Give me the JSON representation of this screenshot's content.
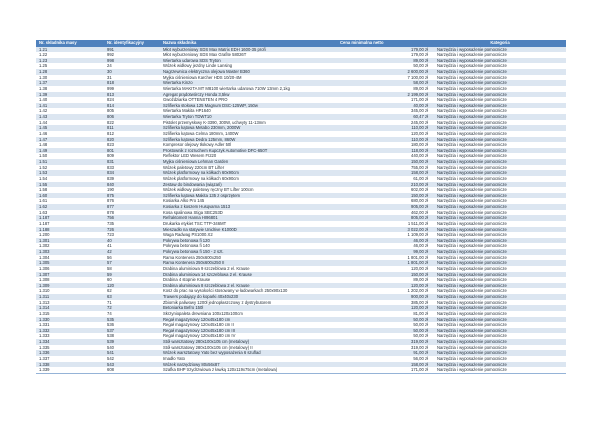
{
  "table": {
    "colors": {
      "header_bg": "#4f81bd",
      "header_text": "#ffffff",
      "band_row_bg": "#dce6f1",
      "plain_row_bg": "#ffffff"
    },
    "columns": [
      {
        "key": "nr",
        "label": "Nr. składnika masy"
      },
      {
        "key": "id",
        "label": "Nr. identyfikacyjny"
      },
      {
        "key": "name",
        "label": "Nazwa składnika"
      },
      {
        "key": "price",
        "label": "Cena minimalna netto"
      },
      {
        "key": "category",
        "label": "Kategoria"
      }
    ],
    "rows": [
      {
        "nr": "1.21",
        "id": "991",
        "name": "Młot wyburzeniowy SDS Max Matrix EDH 1600-35 profi",
        "price": "179,00 zł",
        "category": "Narzędzia i wyposażenie pomocnicze"
      },
      {
        "nr": "1.22",
        "id": "992",
        "name": "Młot wyburzeniowy SDS Max Grafite 58026T",
        "price": "179,00 zł",
        "category": "Narzędzia i wyposażenie pomocnicze"
      },
      {
        "nr": "1.23",
        "id": "998",
        "name": "Wiertarka udarowa SDS Tryton",
        "price": "89,00 zł",
        "category": "Narzędzia i wyposażenie pomocnicze"
      },
      {
        "nr": "1.25",
        "id": "24",
        "name": "Wózek widłowy jezdny Linde Lansing",
        "price": "50,00 zł",
        "category": "Narzędzia i wyposażenie pomocnicze"
      },
      {
        "nr": "1.28",
        "id": "30",
        "name": "Nagrzewnica elektryczna olejowa Master B360",
        "price": "2 600,00 zł",
        "category": "Narzędzia i wyposażenie pomocnicze"
      },
      {
        "nr": "1.30",
        "id": "31",
        "name": "Myjka ciśnieniowa Karcher HDS 10/20-4M",
        "price": "7 100,00 zł",
        "category": "Narzędzia i wyposażenie pomocnicze"
      },
      {
        "nr": "1.37",
        "id": "818",
        "name": "Wiertarka Kinzo",
        "price": "58,00 zł",
        "category": "Narzędzia i wyposażenie pomocnicze"
      },
      {
        "nr": "1.38",
        "id": "999",
        "name": "Wiertarka MAKITA MT M8100 wiertarka udarowa 710W 13mm 2,1kg",
        "price": "89,00 zł",
        "category": "Narzędzia i wyposażenie pomocnicze"
      },
      {
        "nr": "1.39",
        "id": "813",
        "name": "Agregat prądotwórczy Honda 3,5kw",
        "price": "2 199,00 zł",
        "category": "Narzędzia i wyposażenie pomocnicze"
      },
      {
        "nr": "1.40",
        "id": "824",
        "name": "Gwoździarka OTTENSTEN 4 PRO",
        "price": "171,00 zł",
        "category": "Narzędzia i wyposażenie pomocnicze"
      },
      {
        "nr": "1.41",
        "id": "814",
        "name": "Szlifierka stołowa 125 Magnum DSC-125WP, 150w",
        "price": "40,00 zł",
        "category": "Narzędzia i wyposażenie pomocnicze"
      },
      {
        "nr": "1.42",
        "id": "805",
        "name": "Wiertarka Makita HP1640",
        "price": "345,00 zł",
        "category": "Narzędzia i wyposażenie pomocnicze"
      },
      {
        "nr": "1.43",
        "id": "806",
        "name": "Wiertarka Tryton TDWT10",
        "price": "60,47 zł",
        "category": "Narzędzia i wyposażenie pomocnicze"
      },
      {
        "nr": "1.44",
        "id": "822",
        "name": "Pistolet przemysłowy K-3390, 300W, uchwyty 11-13mm",
        "price": "245,00 zł",
        "category": "Narzędzia i wyposażenie pomocnicze"
      },
      {
        "nr": "1.45",
        "id": "811",
        "name": "Szlifierka kątowa Metabo 230mm, 2000W",
        "price": "110,00 zł",
        "category": "Narzędzia i wyposażenie pomocnicze"
      },
      {
        "nr": "1.46",
        "id": "812",
        "name": "Szlifierka kątowa Celma 180mm, 1400W",
        "price": "120,00 zł",
        "category": "Narzędzia i wyposażenie pomocnicze"
      },
      {
        "nr": "1.47",
        "id": "820",
        "name": "Szlifierka kątowa Dedra 125mm, 860W",
        "price": "110,00 zł",
        "category": "Narzędzia i wyposażenie pomocnicze"
      },
      {
        "nr": "1.48",
        "id": "823",
        "name": "Kompresor olejowy tłokowy Adler 50l",
        "price": "180,00 zł",
        "category": "Narzędzia i wyposażenie pomocnicze"
      },
      {
        "nr": "1.49",
        "id": "801",
        "name": "Prostownik z rozruchem Kupczyk Automotive DFC-650T",
        "price": "118,00 zł",
        "category": "Narzędzia i wyposażenie pomocnicze"
      },
      {
        "nr": "1.50",
        "id": "809",
        "name": "Reflektor LED Wesem FI220",
        "price": "440,00 zł",
        "category": "Narzędzia i wyposażenie pomocnicze"
      },
      {
        "nr": "1.51",
        "id": "831",
        "name": "Myjka ciśnieniowa Lehman Garden",
        "price": "150,00 zł",
        "category": "Narzędzia i wyposażenie pomocnicze"
      },
      {
        "nr": "1.52",
        "id": "833",
        "name": "Wózek paletowy 220cm BT Lifter",
        "price": "755,00 zł",
        "category": "Narzędzia i wyposażenie pomocnicze"
      },
      {
        "nr": "1.53",
        "id": "834",
        "name": "Wózek platformowy na kółkach 60x90cm",
        "price": "158,00 zł",
        "category": "Narzędzia i wyposażenie pomocnicze"
      },
      {
        "nr": "1.54",
        "id": "839",
        "name": "Wózek platformowy na kółkach 60x90cm",
        "price": "61,00 zł",
        "category": "Narzędzia i wyposażenie pomocnicze"
      },
      {
        "nr": "1.55",
        "id": "840",
        "name": "Zestaw do bindowania (wiązań)",
        "price": "210,00 zł",
        "category": "Narzędzia i wyposażenie pomocnicze"
      },
      {
        "nr": "1.58",
        "id": "190",
        "name": "Wózek widłowy paletowy ręczny BT Lifter 100cm",
        "price": "602,00 zł",
        "category": "Narzędzia i wyposażenie pomocnicze"
      },
      {
        "nr": "1.60",
        "id": "875",
        "name": "Szlifierka kątowa Makita 135 z osprzętem",
        "price": "150,00 zł",
        "category": "Narzędzia i wyposażenie pomocnicze"
      },
      {
        "nr": "1.61",
        "id": "876",
        "name": "Kosiarka Alko Pro 145",
        "price": "680,00 zł",
        "category": "Narzędzia i wyposażenie pomocnicze"
      },
      {
        "nr": "1.62",
        "id": "877",
        "name": "Kosiarka z koszem Husqvarna 1513",
        "price": "905,00 zł",
        "category": "Narzędzia i wyposażenie pomocnicze"
      },
      {
        "nr": "1.63",
        "id": "878",
        "name": "Kosa spalinowa Stiga SBC253D",
        "price": "462,00 zł",
        "category": "Narzędzia i wyposażenie pomocnicze"
      },
      {
        "nr": "1.187",
        "id": "756",
        "name": "Refraktometr Hanna HI96801",
        "price": "805,00 zł",
        "category": "Narzędzia i wyposażenie pomocnicze"
      },
      {
        "nr": "1.187",
        "id": "735",
        "name": "Drukarka etykiet TSC TTP-346MT",
        "price": "1 511,00 zł",
        "category": "Narzędzia i wyposażenie pomocnicze"
      },
      {
        "nr": "1.188",
        "id": "726",
        "name": "Mieszadło na statywie Unidrive K1000D",
        "price": "3 022,00 zł",
        "category": "Narzędzia i wyposażenie pomocnicze"
      },
      {
        "nr": "1.200",
        "id": "723",
        "name": "Waga Radwag PS1000.X2",
        "price": "1 109,00 zł",
        "category": "Narzędzia i wyposażenie pomocnicze"
      },
      {
        "nr": "1.301",
        "id": "40",
        "name": "Pokrywa betonowa fi 120",
        "price": "46,00 zł",
        "category": "Narzędzia i wyposażenie pomocnicze"
      },
      {
        "nr": "1.302",
        "id": "41",
        "name": "Pokrywa betonowa fi 140",
        "price": "46,00 zł",
        "category": "Narzędzia i wyposażenie pomocnicze"
      },
      {
        "nr": "1.303",
        "id": "42",
        "name": "Pokrywa betonowa fi 150 - 2 szt.",
        "price": "99,00 zł",
        "category": "Narzędzia i wyposażenie pomocnicze"
      },
      {
        "nr": "1.304",
        "id": "56",
        "name": "Rama Kontenera 250x600x250",
        "price": "1 801,00 zł",
        "category": "Narzędzia i wyposażenie pomocnicze"
      },
      {
        "nr": "1.305",
        "id": "57",
        "name": "Rama Kontenera 250x600x250 II",
        "price": "1 801,00 zł",
        "category": "Narzędzia i wyposażenie pomocnicze"
      },
      {
        "nr": "1.306",
        "id": "58",
        "name": "Drabina aluminiowa 9 szczeblowa 2 el. Krause",
        "price": "120,00 zł",
        "category": "Narzędzia i wyposażenie pomocnicze"
      },
      {
        "nr": "1.307",
        "id": "59",
        "name": "Drabina aluminiowa 14 szczeblowa 2 el. Krause",
        "price": "150,00 zł",
        "category": "Narzędzia i wyposażenie pomocnicze"
      },
      {
        "nr": "1.308",
        "id": "60",
        "name": "Drabina 4 stopnie Krause",
        "price": "89,00 zł",
        "category": "Narzędzia i wyposażenie pomocnicze"
      },
      {
        "nr": "1.309",
        "id": "120",
        "name": "Drabina aluminiowa 8 szczeblowa 2 el. Krause",
        "price": "120,00 zł",
        "category": "Narzędzia i wyposażenie pomocnicze"
      },
      {
        "nr": "1.310",
        "id": "62",
        "name": "Kosz do prac na wysokości stosowany w ładowarkach 250x90x130",
        "price": "1 202,00 zł",
        "category": "Narzędzia i wyposażenie pomocnicze"
      },
      {
        "nr": "1.311",
        "id": "63",
        "name": "Trawers podający do koparki 40x40x230",
        "price": "900,00 zł",
        "category": "Narzędzia i wyposażenie pomocnicze"
      },
      {
        "nr": "1.313",
        "id": "71",
        "name": "Zbiornik paliwowy 1200l jednopłaszczowy z dystrybutorem",
        "price": "385,00 zł",
        "category": "Narzędzia i wyposażenie pomocnicze"
      },
      {
        "nr": "1.314",
        "id": "72",
        "name": "Betoniarka Befro 150l",
        "price": "120,00 zł",
        "category": "Narzędzia i wyposażenie pomocnicze"
      },
      {
        "nr": "1.315",
        "id": "74",
        "name": "Skrzyniopaleta drewniana 100x120x100cm",
        "price": "81,00 zł",
        "category": "Narzędzia i wyposażenie pomocnicze"
      },
      {
        "nr": "1.330",
        "id": "535",
        "name": "Regał magazynowy 120x45x180 cm",
        "price": "50,00 zł",
        "category": "Narzędzia i wyposażenie pomocnicze"
      },
      {
        "nr": "1.331",
        "id": "536",
        "name": "Regał magazynowy 120x45x180 cm II",
        "price": "50,00 zł",
        "category": "Narzędzia i wyposażenie pomocnicze"
      },
      {
        "nr": "1.332",
        "id": "537",
        "name": "Regał magazynowy 120x45x180 cm III",
        "price": "50,00 zł",
        "category": "Narzędzia i wyposażenie pomocnicze"
      },
      {
        "nr": "1.333",
        "id": "538",
        "name": "Regał magazynowy 120x45x180 cm IV",
        "price": "50,00 zł",
        "category": "Narzędzia i wyposażenie pomocnicze"
      },
      {
        "nr": "1.334",
        "id": "539",
        "name": "Stół warsztatowy 280x100x105 cm (metalowy)",
        "price": "319,00 zł",
        "category": "Narzędzia i wyposażenie pomocnicze"
      },
      {
        "nr": "1.335",
        "id": "540",
        "name": "Stół warsztatowy 280x100x105 cm (metalowy) II",
        "price": "319,00 zł",
        "category": "Narzędzia i wyposażenie pomocnicze"
      },
      {
        "nr": "1.336",
        "id": "541",
        "name": "Wózek warsztatowy Yato bez wyposażenia 6 szuflad",
        "price": "91,00 zł",
        "category": "Narzędzia i wyposażenie pomocnicze"
      },
      {
        "nr": "1.337",
        "id": "542",
        "name": "Imadło Yato",
        "price": "56,00 zł",
        "category": "Narzędzia i wyposażenie pomocnicze"
      },
      {
        "nr": "1.338",
        "id": "543",
        "name": "Wózek narzędziowy 80x56x87",
        "price": "158,00 zł",
        "category": "Narzędzia i wyposażenie pomocnicze"
      },
      {
        "nr": "1.339",
        "id": "608",
        "name": "Szafka BHP trzydrzwiowa z ławką 120x119x75cm (metalowa)",
        "price": "171,00 zł",
        "category": "Narzędzia i wyposażenie pomocnicze"
      }
    ]
  }
}
